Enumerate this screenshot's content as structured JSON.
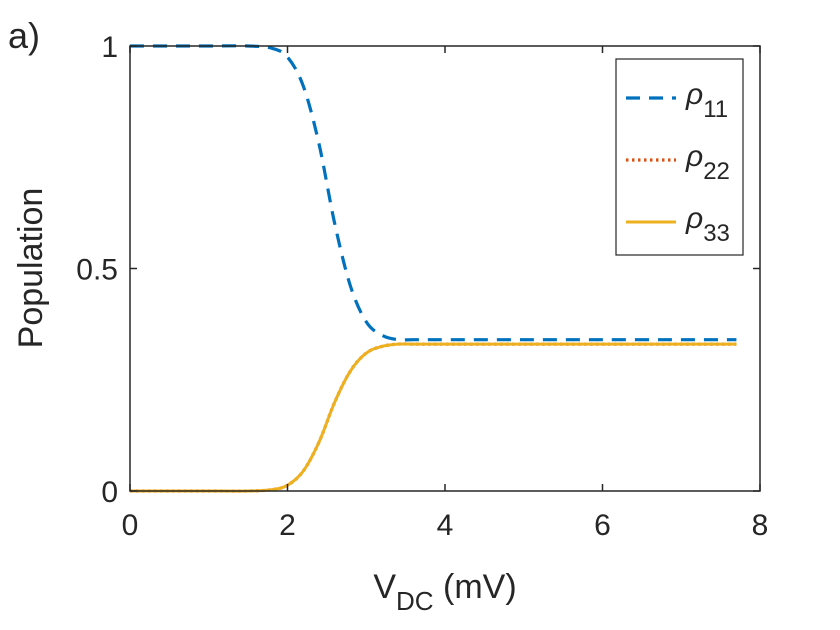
{
  "panel_label": "a)",
  "chart_data": {
    "type": "line",
    "title": "",
    "xlabel": {
      "main": "V",
      "sub": "DC",
      "unit": " (mV)"
    },
    "ylabel": "Population",
    "xlim": [
      0,
      8
    ],
    "ylim": [
      0,
      1
    ],
    "xticks": [
      0,
      2,
      4,
      6,
      8
    ],
    "yticks": [
      0,
      0.5,
      1
    ],
    "xtick_labels": [
      "0",
      "2",
      "4",
      "6",
      "8"
    ],
    "ytick_labels": [
      "0",
      "0.5",
      "1"
    ],
    "grid": false,
    "legend_position": "top-right",
    "x": [
      0,
      0.5,
      1.0,
      1.5,
      1.8,
      2.0,
      2.2,
      2.4,
      2.6,
      2.8,
      3.0,
      3.2,
      3.4,
      3.6,
      4.0,
      5.0,
      6.0,
      7.0,
      7.7
    ],
    "series": [
      {
        "name": "ρ11",
        "symbol": "ρ",
        "subscript": "11",
        "style": "dashed",
        "color": "#0072BD",
        "values": [
          1.0,
          1.0,
          1.0,
          1.0,
          0.995,
          0.975,
          0.91,
          0.78,
          0.6,
          0.46,
          0.38,
          0.35,
          0.34,
          0.34,
          0.34,
          0.34,
          0.34,
          0.34,
          0.34
        ]
      },
      {
        "name": "ρ22",
        "symbol": "ρ",
        "subscript": "22",
        "style": "dotted",
        "color": "#D95319",
        "values": [
          0.0,
          0.0,
          0.0,
          0.0,
          0.003,
          0.013,
          0.045,
          0.11,
          0.2,
          0.27,
          0.31,
          0.325,
          0.33,
          0.33,
          0.33,
          0.33,
          0.33,
          0.33,
          0.33
        ]
      },
      {
        "name": "ρ33",
        "symbol": "ρ",
        "subscript": "33",
        "style": "solid",
        "color": "#EDB120",
        "values": [
          0.0,
          0.0,
          0.0,
          0.0,
          0.003,
          0.013,
          0.045,
          0.11,
          0.2,
          0.27,
          0.31,
          0.325,
          0.33,
          0.33,
          0.33,
          0.33,
          0.33,
          0.33,
          0.33
        ]
      }
    ]
  }
}
